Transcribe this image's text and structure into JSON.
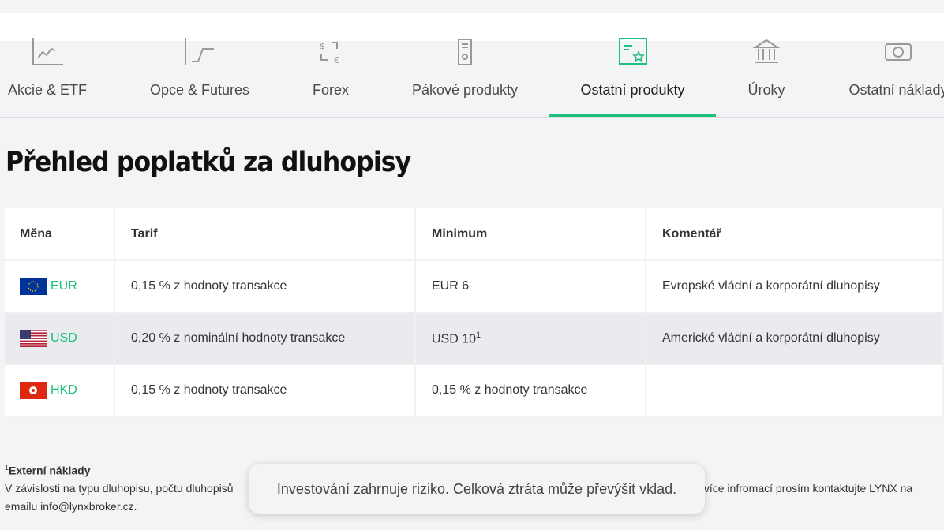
{
  "tabs": [
    {
      "label": "Akcie & ETF",
      "icon": "chart-line-icon"
    },
    {
      "label": "Opce & Futures",
      "icon": "step-chart-icon"
    },
    {
      "label": "Forex",
      "icon": "currency-exchange-icon"
    },
    {
      "label": "Pákové produkty",
      "icon": "certificate-document-icon"
    },
    {
      "label": "Ostatní produkty",
      "icon": "bond-certificate-icon",
      "active": true
    },
    {
      "label": "Úroky",
      "icon": "bank-icon"
    },
    {
      "label": "Ostatní náklady",
      "icon": "banknote-icon"
    }
  ],
  "accent": "#1ec07c",
  "heading": "Přehled poplatků za dluhopisy",
  "table": {
    "headers": [
      "Měna",
      "Tarif",
      "Minimum",
      "Komentář"
    ],
    "rows": [
      {
        "currency": "EUR",
        "flag": "eu-flag-icon",
        "tarif": "0,15 % z hodnoty transakce",
        "minimum": "EUR 6",
        "minimum_sup": "",
        "comment": "Evropské vládní a korporátní dluhopisy"
      },
      {
        "currency": "USD",
        "flag": "us-flag-icon",
        "tarif": "0,20 % z nominální hodnoty transakce",
        "minimum": "USD 10",
        "minimum_sup": "1",
        "comment": "Americké vládní a korporátní dluhopisy"
      },
      {
        "currency": "HKD",
        "flag": "hk-flag-icon",
        "tarif": "0,15 % z hodnoty transakce",
        "minimum": "0,15 % z hodnoty transakce",
        "minimum_sup": "",
        "comment": ""
      }
    ]
  },
  "notes": {
    "sup": "1",
    "title": "Externí náklady",
    "text_start": "V závislosti na typu dluhopisu, počtu dluhopisů",
    "text_end": "ro více infromací prosím kontaktujte LYNX na emailu info@lynxbroker.cz."
  },
  "toast": "Investování zahrnuje riziko. Celková ztráta může převýšit vklad."
}
